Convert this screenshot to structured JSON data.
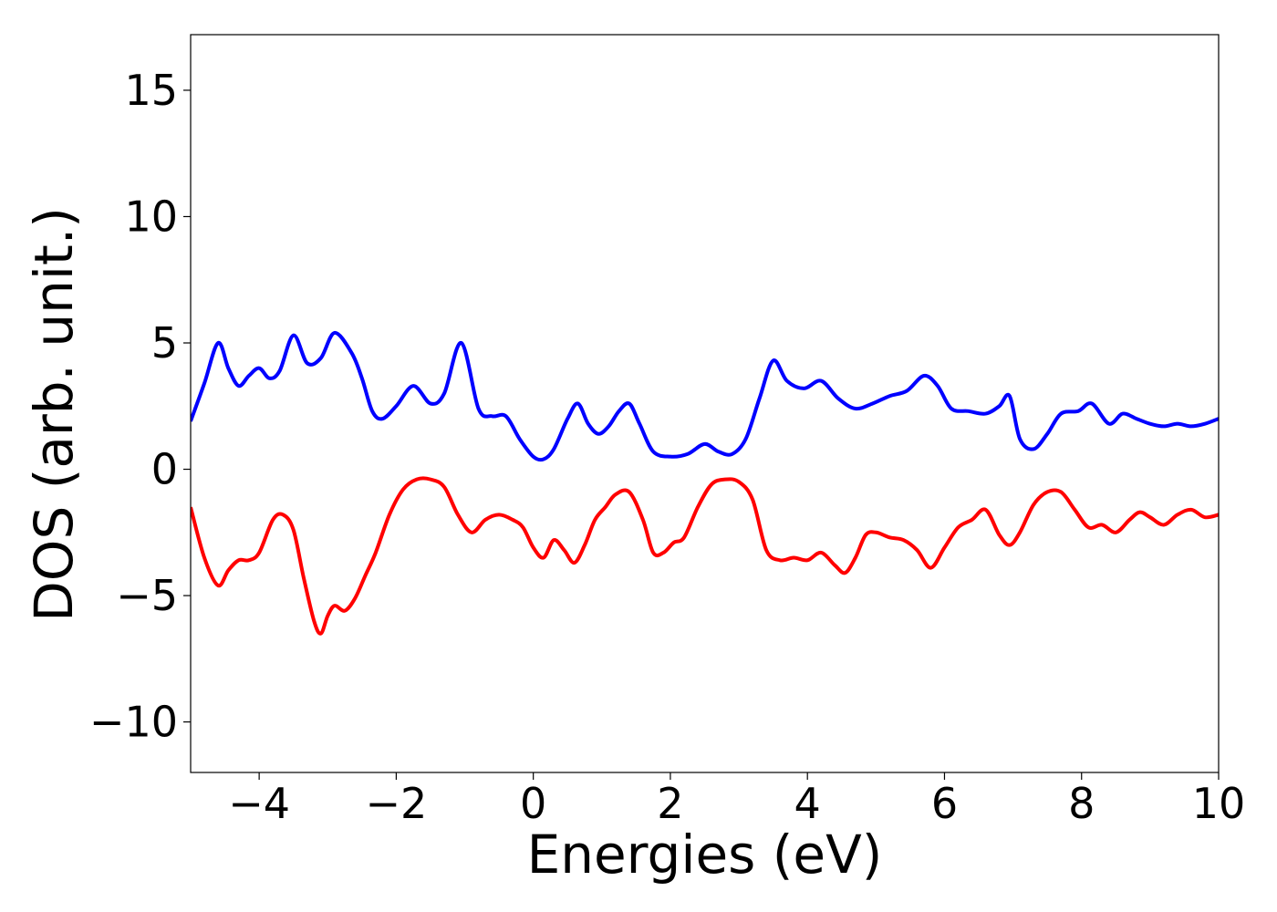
{
  "chart_data": {
    "type": "line",
    "title": "",
    "xlabel": "Energies (eV)",
    "ylabel": "DOS (arb. unit.)",
    "xlim": [
      -5,
      10
    ],
    "ylim": [
      -12,
      17.2
    ],
    "xticks": [
      -4,
      -2,
      0,
      2,
      4,
      6,
      8,
      10
    ],
    "xtick_labels": [
      "−4",
      "−2",
      "0",
      "2",
      "4",
      "6",
      "8",
      "10"
    ],
    "yticks": [
      -10,
      -5,
      0,
      5,
      10,
      15
    ],
    "ytick_labels": [
      "−10",
      "−5",
      "0",
      "5",
      "10",
      "15"
    ],
    "grid": false,
    "legend": "none",
    "series": [
      {
        "color": "#0000ff",
        "x": [
          -5.0,
          -4.8,
          -4.6,
          -4.45,
          -4.3,
          -4.15,
          -4.0,
          -3.85,
          -3.7,
          -3.5,
          -3.3,
          -3.1,
          -2.9,
          -2.65,
          -2.5,
          -2.35,
          -2.2,
          -2.0,
          -1.75,
          -1.5,
          -1.3,
          -1.05,
          -0.8,
          -0.6,
          -0.4,
          -0.2,
          0.0,
          0.15,
          0.3,
          0.5,
          0.65,
          0.8,
          0.95,
          1.1,
          1.25,
          1.4,
          1.55,
          1.75,
          2.0,
          2.25,
          2.5,
          2.7,
          2.9,
          3.1,
          3.3,
          3.5,
          3.7,
          3.95,
          4.2,
          4.45,
          4.7,
          4.95,
          5.2,
          5.45,
          5.7,
          5.9,
          6.1,
          6.35,
          6.6,
          6.8,
          6.95,
          7.1,
          7.3,
          7.5,
          7.7,
          7.95,
          8.15,
          8.4,
          8.6,
          8.8,
          9.0,
          9.2,
          9.4,
          9.6,
          9.8,
          10.0
        ],
        "values": [
          1.9,
          3.4,
          5.0,
          4.0,
          3.3,
          3.7,
          4.0,
          3.6,
          3.9,
          5.3,
          4.2,
          4.4,
          5.4,
          4.6,
          3.6,
          2.3,
          2.0,
          2.5,
          3.3,
          2.6,
          3.0,
          5.0,
          2.4,
          2.1,
          2.1,
          1.2,
          0.5,
          0.4,
          0.8,
          2.0,
          2.6,
          1.8,
          1.4,
          1.7,
          2.3,
          2.6,
          1.8,
          0.7,
          0.5,
          0.6,
          1.0,
          0.7,
          0.6,
          1.2,
          2.8,
          4.3,
          3.5,
          3.2,
          3.5,
          2.8,
          2.4,
          2.6,
          2.9,
          3.1,
          3.7,
          3.3,
          2.4,
          2.3,
          2.2,
          2.5,
          2.9,
          1.2,
          0.8,
          1.4,
          2.2,
          2.3,
          2.6,
          1.8,
          2.2,
          2.0,
          1.8,
          1.7,
          1.8,
          1.7,
          1.8,
          2.0
        ]
      },
      {
        "color": "#ff0000",
        "x": [
          -5.0,
          -4.8,
          -4.6,
          -4.45,
          -4.3,
          -4.15,
          -4.0,
          -3.8,
          -3.65,
          -3.5,
          -3.35,
          -3.2,
          -3.1,
          -3.0,
          -2.9,
          -2.75,
          -2.6,
          -2.45,
          -2.3,
          -2.1,
          -1.9,
          -1.7,
          -1.5,
          -1.3,
          -1.1,
          -0.9,
          -0.7,
          -0.5,
          -0.3,
          -0.15,
          0.0,
          0.15,
          0.3,
          0.45,
          0.6,
          0.75,
          0.9,
          1.05,
          1.2,
          1.4,
          1.6,
          1.75,
          1.9,
          2.05,
          2.2,
          2.4,
          2.6,
          2.8,
          3.0,
          3.2,
          3.4,
          3.6,
          3.8,
          4.0,
          4.2,
          4.4,
          4.55,
          4.7,
          4.85,
          5.0,
          5.2,
          5.4,
          5.6,
          5.8,
          6.0,
          6.2,
          6.4,
          6.6,
          6.8,
          6.95,
          7.1,
          7.3,
          7.5,
          7.7,
          7.9,
          8.1,
          8.3,
          8.5,
          8.7,
          8.85,
          9.0,
          9.2,
          9.4,
          9.6,
          9.8,
          10.0
        ],
        "values": [
          -1.5,
          -3.5,
          -4.6,
          -4.0,
          -3.6,
          -3.6,
          -3.3,
          -2.0,
          -1.8,
          -2.4,
          -4.3,
          -6.0,
          -6.5,
          -5.8,
          -5.4,
          -5.6,
          -5.1,
          -4.2,
          -3.3,
          -1.8,
          -0.8,
          -0.4,
          -0.4,
          -0.7,
          -1.8,
          -2.5,
          -2.0,
          -1.8,
          -2.0,
          -2.3,
          -3.1,
          -3.5,
          -2.8,
          -3.2,
          -3.7,
          -3.0,
          -2.0,
          -1.5,
          -1.0,
          -0.9,
          -2.0,
          -3.3,
          -3.3,
          -2.9,
          -2.7,
          -1.5,
          -0.6,
          -0.4,
          -0.5,
          -1.2,
          -3.2,
          -3.6,
          -3.5,
          -3.6,
          -3.3,
          -3.8,
          -4.1,
          -3.5,
          -2.6,
          -2.5,
          -2.7,
          -2.8,
          -3.2,
          -3.9,
          -3.1,
          -2.3,
          -2.0,
          -1.6,
          -2.6,
          -3.0,
          -2.5,
          -1.4,
          -0.9,
          -0.9,
          -1.6,
          -2.3,
          -2.2,
          -2.5,
          -2.0,
          -1.7,
          -1.9,
          -2.2,
          -1.8,
          -1.6,
          -1.9,
          -1.8
        ]
      }
    ]
  }
}
